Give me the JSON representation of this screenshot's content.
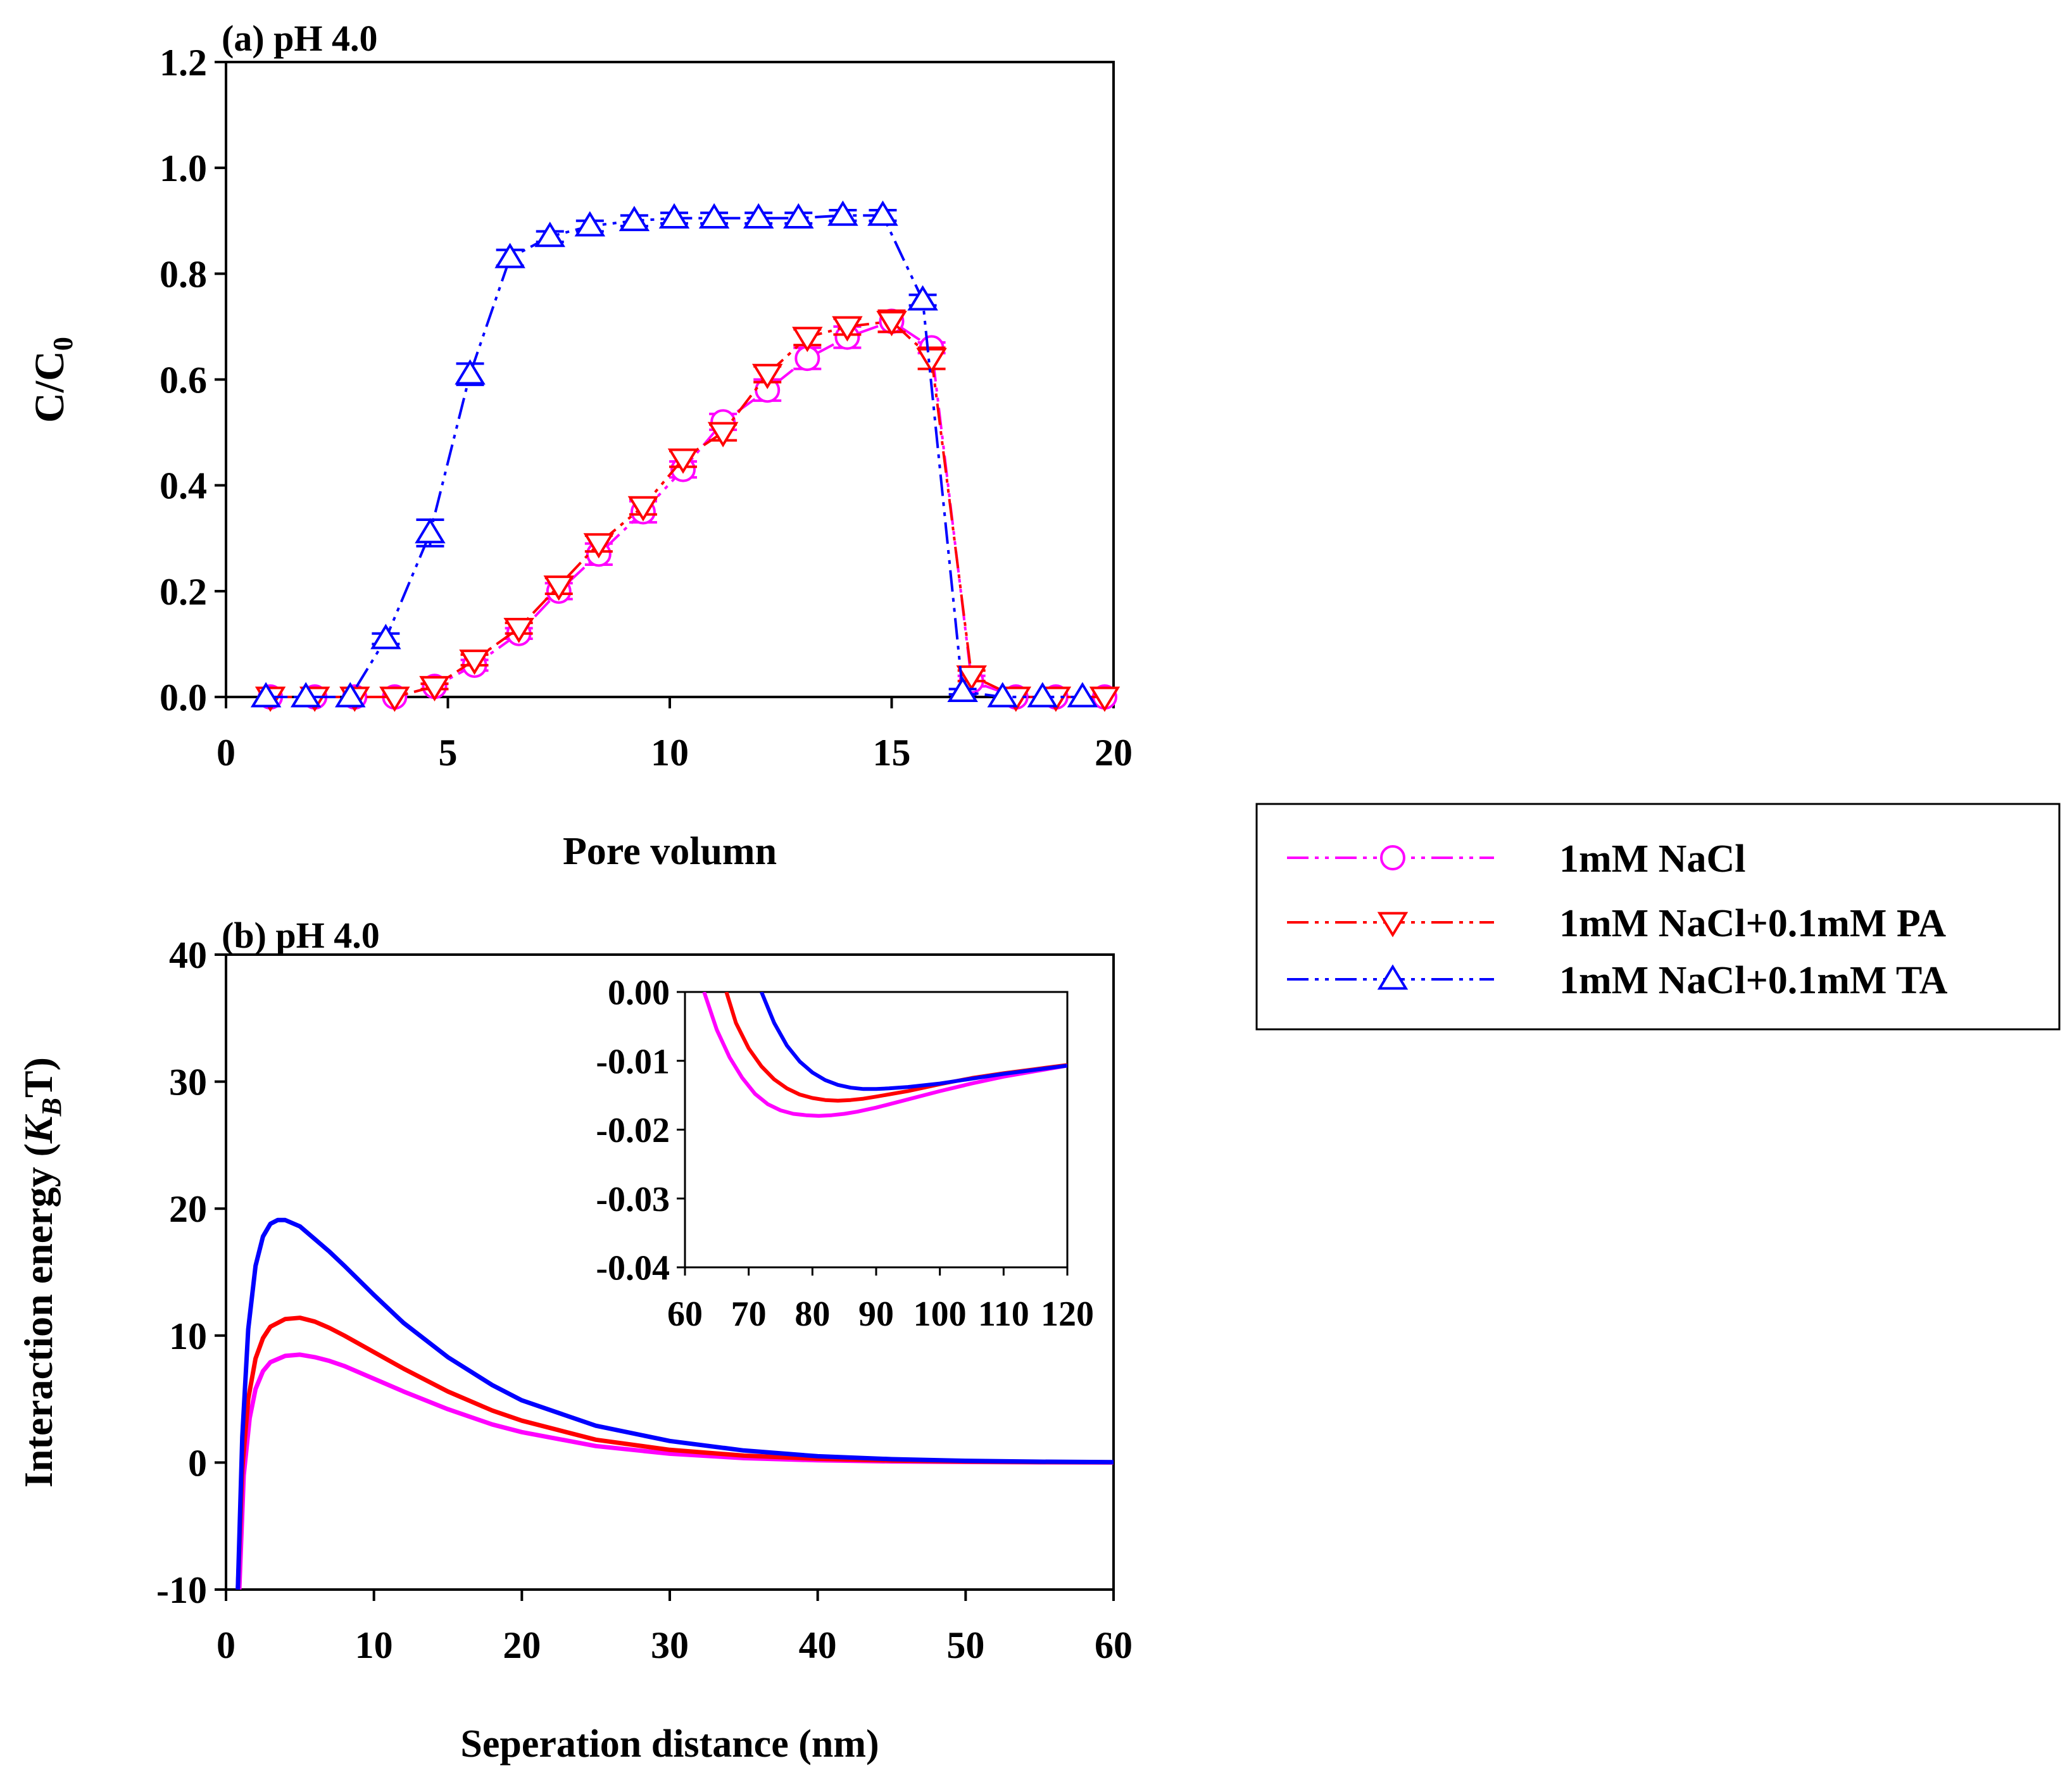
{
  "legend": {
    "entries": [
      {
        "label": "1mM NaCl",
        "color": "#ff00ff",
        "marker": "circle"
      },
      {
        "label": "1mM NaCl+0.1mM PA",
        "color": "#ff0000",
        "marker": "triangle-down"
      },
      {
        "label": "1mM NaCl+0.1mM TA",
        "color": "#0000ff",
        "marker": "triangle-up"
      }
    ]
  },
  "chart_data": [
    {
      "id": "a",
      "type": "line",
      "title": "(a) pH 4.0",
      "xlabel": "Pore volumn",
      "ylabel_main": "C/C",
      "ylabel_sub": "0",
      "xlim": [
        0,
        20
      ],
      "ylim": [
        0,
        1.2
      ],
      "xticks": [
        "0",
        "5",
        "10",
        "15",
        "20"
      ],
      "yticks": [
        "0.0",
        "0.2",
        "0.4",
        "0.6",
        "0.8",
        "1.0",
        "1.2"
      ],
      "series": [
        {
          "name": "1mM NaCl",
          "color": "#ff00ff",
          "marker": "circle",
          "x": [
            1.0,
            2.0,
            2.9,
            3.8,
            4.7,
            5.6,
            6.6,
            7.5,
            8.4,
            9.4,
            10.3,
            11.2,
            12.2,
            13.1,
            14.0,
            15.0,
            15.9,
            16.8,
            17.8,
            18.7,
            19.8
          ],
          "y": [
            0.0,
            0.0,
            0.0,
            0.0,
            0.02,
            0.06,
            0.12,
            0.2,
            0.27,
            0.35,
            0.43,
            0.52,
            0.58,
            0.64,
            0.68,
            0.71,
            0.66,
            0.03,
            0.0,
            0.0,
            0.0
          ],
          "err": [
            0.0,
            0.0,
            0.0,
            0.0,
            0.005,
            0.01,
            0.01,
            0.015,
            0.02,
            0.02,
            0.015,
            0.015,
            0.02,
            0.02,
            0.02,
            0.02,
            0.01,
            0.01,
            0.0,
            0.0,
            0.0
          ]
        },
        {
          "name": "1mM NaCl+0.1mM PA",
          "color": "#ff0000",
          "marker": "triangle-down",
          "x": [
            1.0,
            2.0,
            2.9,
            3.8,
            4.7,
            5.6,
            6.6,
            7.5,
            8.4,
            9.4,
            10.3,
            11.2,
            12.2,
            13.1,
            14.0,
            15.0,
            15.9,
            16.8,
            17.8,
            18.7,
            19.8
          ],
          "y": [
            0.0,
            0.0,
            0.0,
            0.0,
            0.02,
            0.07,
            0.13,
            0.21,
            0.29,
            0.36,
            0.45,
            0.5,
            0.61,
            0.68,
            0.7,
            0.71,
            0.64,
            0.04,
            0.0,
            0.0,
            0.0
          ],
          "err": [
            0.0,
            0.0,
            0.0,
            0.0,
            0.005,
            0.01,
            0.01,
            0.015,
            0.015,
            0.015,
            0.015,
            0.015,
            0.015,
            0.015,
            0.015,
            0.02,
            0.02,
            0.01,
            0.0,
            0.0,
            0.0
          ]
        },
        {
          "name": "1mM NaCl+0.1mM TA",
          "color": "#0000ff",
          "marker": "triangle-up",
          "x": [
            0.9,
            1.8,
            2.8,
            3.6,
            4.6,
            5.5,
            6.4,
            7.3,
            8.2,
            9.2,
            10.1,
            11.0,
            12.0,
            12.9,
            13.9,
            14.8,
            15.7,
            16.6,
            17.5,
            18.4,
            19.3
          ],
          "y": [
            0.0,
            0.0,
            0.0,
            0.11,
            0.31,
            0.61,
            0.83,
            0.87,
            0.89,
            0.9,
            0.905,
            0.905,
            0.905,
            0.905,
            0.91,
            0.91,
            0.75,
            0.01,
            0.0,
            0.0,
            0.0
          ],
          "err": [
            0.0,
            0.0,
            0.0,
            0.01,
            0.025,
            0.02,
            0.015,
            0.01,
            0.01,
            0.01,
            0.01,
            0.01,
            0.01,
            0.01,
            0.01,
            0.01,
            0.01,
            0.005,
            0.0,
            0.0,
            0.0
          ]
        }
      ]
    },
    {
      "id": "b",
      "type": "line",
      "title": "(b) pH 4.0",
      "xlabel": "Seperation distance (nm)",
      "ylabel_main": "Interaction energy (",
      "ylabel_k": "K",
      "ylabel_sub": "B",
      "ylabel_tail": "T)",
      "xlim": [
        0,
        60
      ],
      "ylim": [
        -10,
        40
      ],
      "xticks": [
        "0",
        "10",
        "20",
        "30",
        "40",
        "50",
        "60"
      ],
      "yticks": [
        "-10",
        "0",
        "10",
        "20",
        "30",
        "40"
      ],
      "series": [
        {
          "name": "1mM NaCl",
          "color": "#ff00ff",
          "x": [
            0.9,
            1.2,
            1.6,
            2.0,
            2.5,
            3.0,
            4.0,
            5.0,
            6.0,
            7.0,
            8.0,
            10.0,
            12.0,
            15.0,
            18.0,
            20.0,
            25.0,
            30.0,
            35.0,
            40.0,
            45.0,
            50.0,
            55.0,
            60.0
          ],
          "y": [
            -10.0,
            -1.0,
            3.5,
            5.8,
            7.2,
            7.9,
            8.4,
            8.5,
            8.3,
            8.0,
            7.6,
            6.6,
            5.6,
            4.2,
            3.0,
            2.4,
            1.3,
            0.7,
            0.35,
            0.18,
            0.09,
            0.05,
            0.02,
            0.01
          ]
        },
        {
          "name": "1mM NaCl+0.1mM PA",
          "color": "#ff0000",
          "x": [
            0.8,
            1.1,
            1.5,
            2.0,
            2.5,
            3.0,
            4.0,
            5.0,
            6.0,
            7.0,
            8.0,
            10.0,
            12.0,
            15.0,
            18.0,
            20.0,
            25.0,
            30.0,
            35.0,
            40.0,
            45.0,
            50.0,
            55.0,
            60.0
          ],
          "y": [
            -10.0,
            -0.5,
            5.0,
            8.2,
            9.8,
            10.7,
            11.3,
            11.4,
            11.1,
            10.6,
            10.0,
            8.7,
            7.4,
            5.6,
            4.1,
            3.3,
            1.8,
            1.0,
            0.55,
            0.3,
            0.16,
            0.08,
            0.04,
            0.02
          ]
        },
        {
          "name": "1mM NaCl+0.1mM TA",
          "color": "#0000ff",
          "x": [
            0.8,
            1.1,
            1.5,
            2.0,
            2.5,
            3.0,
            3.5,
            4.0,
            5.0,
            6.0,
            7.0,
            8.0,
            10.0,
            12.0,
            15.0,
            18.0,
            20.0,
            25.0,
            30.0,
            35.0,
            40.0,
            45.0,
            50.0,
            55.0,
            60.0
          ],
          "y": [
            -10.0,
            2.0,
            10.5,
            15.5,
            17.8,
            18.8,
            19.1,
            19.1,
            18.6,
            17.6,
            16.6,
            15.5,
            13.2,
            11.0,
            8.3,
            6.1,
            4.9,
            2.9,
            1.7,
            0.95,
            0.5,
            0.27,
            0.14,
            0.07,
            0.03
          ]
        }
      ]
    },
    {
      "id": "b-inset",
      "type": "line",
      "title": "",
      "xlim": [
        60,
        120
      ],
      "ylim": [
        -0.04,
        0.0
      ],
      "xticks": [
        "60",
        "70",
        "80",
        "90",
        "100",
        "110",
        "120"
      ],
      "yticks": [
        "-0.04",
        "-0.03",
        "-0.02",
        "-0.01",
        "0.00"
      ],
      "series": [
        {
          "name": "1mM NaCl",
          "color": "#ff00ff",
          "x": [
            63.0,
            65.0,
            67.0,
            69.0,
            71.0,
            73.0,
            75.0,
            77.0,
            79.0,
            81.0,
            83.0,
            85.0,
            87.0,
            90.0,
            95.0,
            100.0,
            105.0,
            110.0,
            115.0,
            120.0
          ],
          "y": [
            0.0,
            -0.0055,
            -0.0095,
            -0.0125,
            -0.0148,
            -0.0163,
            -0.0172,
            -0.0177,
            -0.0179,
            -0.018,
            -0.0179,
            -0.0177,
            -0.0174,
            -0.0168,
            -0.0156,
            -0.0144,
            -0.0133,
            -0.0123,
            -0.0115,
            -0.0107
          ]
        },
        {
          "name": "1mM NaCl+0.1mM PA",
          "color": "#ff0000",
          "x": [
            66.5,
            68.0,
            70.0,
            72.0,
            74.0,
            76.0,
            78.0,
            80.0,
            82.0,
            84.0,
            86.0,
            88.0,
            90.0,
            95.0,
            100.0,
            105.0,
            110.0,
            115.0,
            120.0
          ],
          "y": [
            0.0,
            -0.0045,
            -0.0082,
            -0.0108,
            -0.0127,
            -0.014,
            -0.0149,
            -0.0154,
            -0.0157,
            -0.0158,
            -0.0157,
            -0.0155,
            -0.0152,
            -0.0144,
            -0.0134,
            -0.0125,
            -0.0118,
            -0.0112,
            -0.0106
          ]
        },
        {
          "name": "1mM NaCl+0.1mM TA",
          "color": "#0000ff",
          "x": [
            72.0,
            74.0,
            76.0,
            78.0,
            80.0,
            82.0,
            84.0,
            86.0,
            88.0,
            90.0,
            92.0,
            95.0,
            100.0,
            105.0,
            110.0,
            115.0,
            120.0
          ],
          "y": [
            0.0,
            -0.0045,
            -0.0078,
            -0.0101,
            -0.0117,
            -0.0128,
            -0.0135,
            -0.0139,
            -0.0141,
            -0.0141,
            -0.014,
            -0.0138,
            -0.0133,
            -0.0126,
            -0.0119,
            -0.0113,
            -0.0107
          ]
        }
      ]
    }
  ]
}
